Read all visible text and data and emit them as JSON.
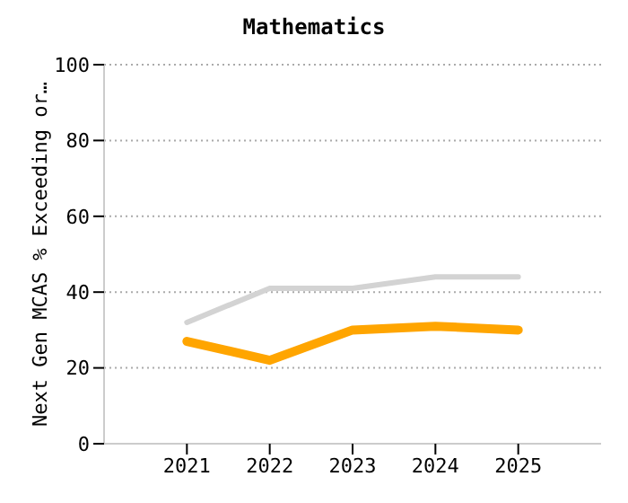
{
  "chart_data": {
    "type": "line",
    "title": "Mathematics",
    "ylabel": "Next Gen MCAS % Exceeding or…",
    "categories": [
      "2021",
      "2022",
      "2023",
      "2024",
      "2025"
    ],
    "series": [
      {
        "color": "#d3d3d3",
        "values": [
          32,
          41,
          41,
          44,
          44
        ]
      },
      {
        "color": "#ffa500",
        "values": [
          27,
          22,
          30,
          31,
          30
        ]
      }
    ],
    "ylim": [
      0,
      100
    ],
    "yticks": [
      0,
      20,
      40,
      60,
      80,
      100
    ],
    "grid": "y",
    "legend": false,
    "marker": "none",
    "line_style": "solid"
  }
}
